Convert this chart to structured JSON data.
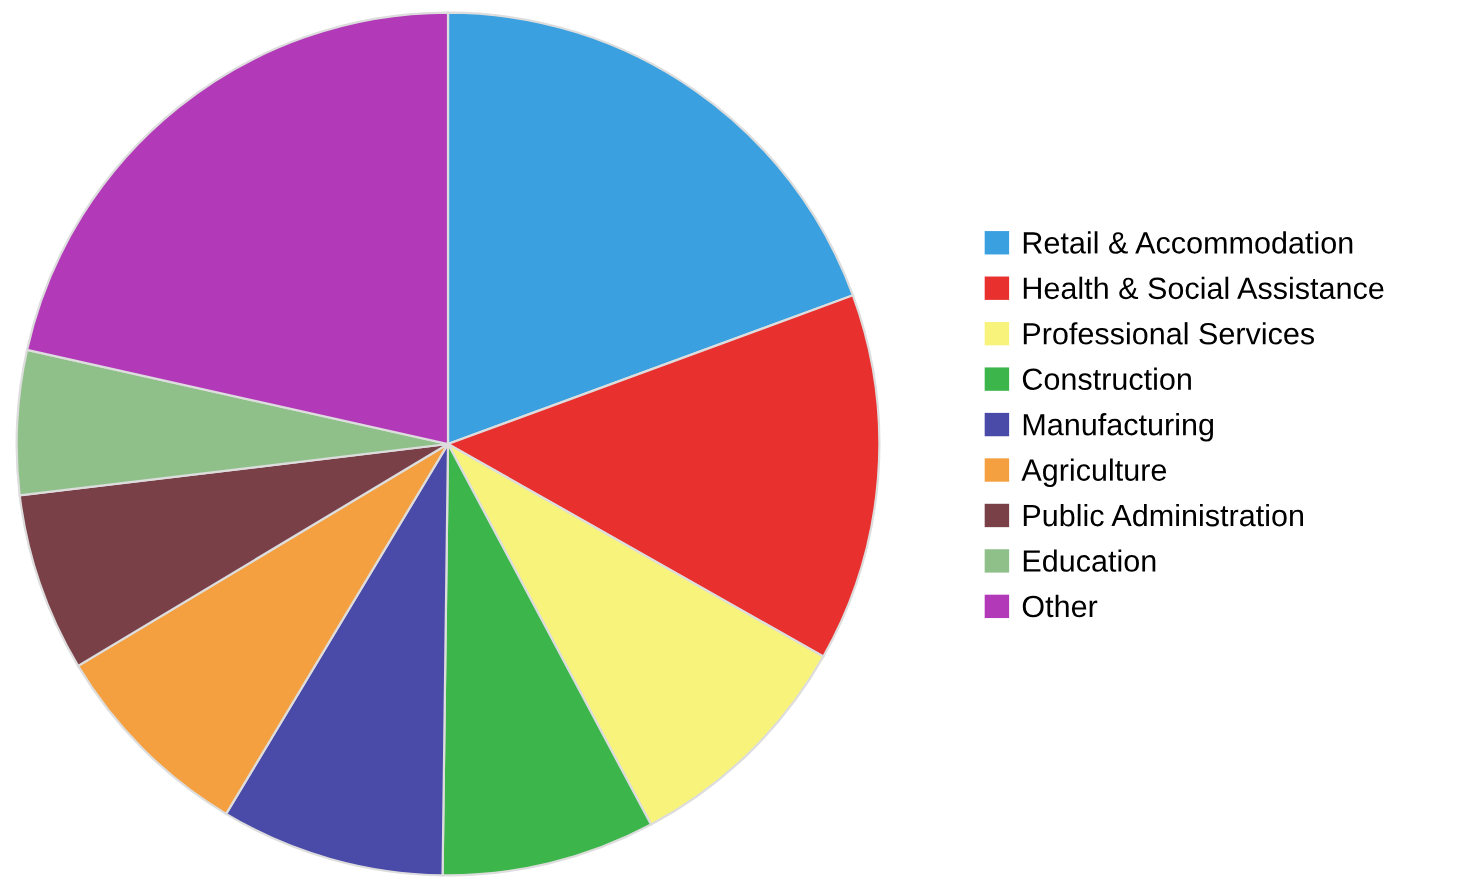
{
  "chart_data": {
    "type": "pie",
    "categories": [
      "Retail & Accommodation",
      "Health & Social Assistance",
      "Professional Services",
      "Construction",
      "Manufacturing",
      "Agriculture",
      "Public Administration",
      "Education",
      "Other"
    ],
    "values": [
      19.4,
      13.8,
      9.0,
      8.0,
      8.4,
      7.8,
      6.7,
      5.4,
      21.5
    ],
    "colors": [
      "#3aa0e0",
      "#e8312f",
      "#f8f37a",
      "#3cb54a",
      "#4a4aa8",
      "#f4a040",
      "#7a4048",
      "#8fc08a",
      "#b23ab8"
    ],
    "legend": "right"
  }
}
